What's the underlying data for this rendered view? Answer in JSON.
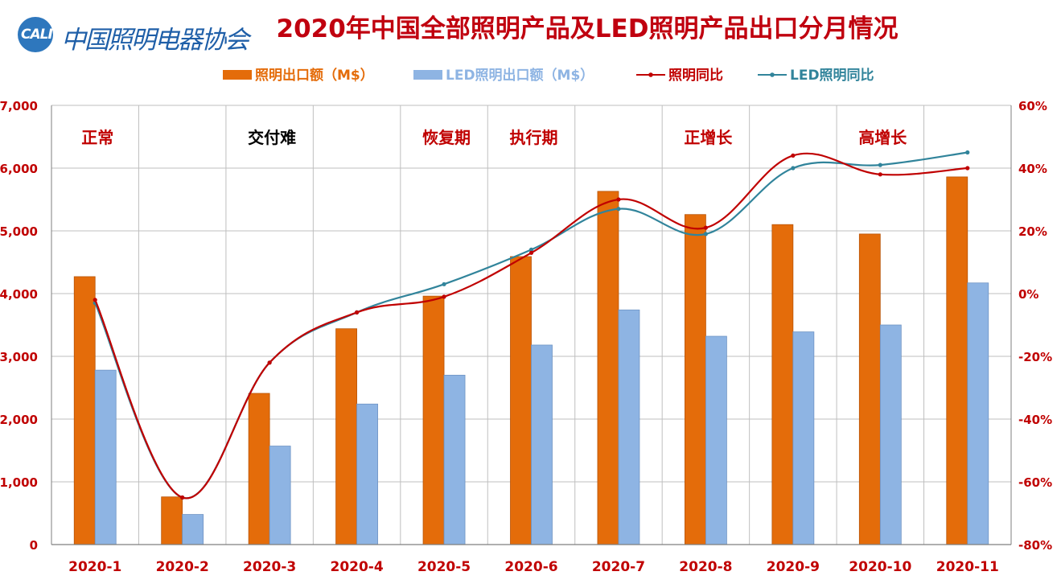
{
  "logo": {
    "abbr": "CALI",
    "text": "中国照明电器协会"
  },
  "colors": {
    "bar_total": "#e46c0a",
    "bar_led": "#8eb4e3",
    "line_total": "#c00000",
    "line_led": "#31849b",
    "title": "#c00000",
    "axis_text": "#c00000",
    "stage_red": "#c00000",
    "stage_black": "#000000"
  },
  "chart_data": {
    "type": "bar",
    "title": "2020年中国全部照明产品及LED照明产品出口分月情况",
    "categories": [
      "2020-1",
      "2020-2",
      "2020-3",
      "2020-4",
      "2020-5",
      "2020-6",
      "2020-7",
      "2020-8",
      "2020-9",
      "2020-10",
      "2020-11"
    ],
    "series": [
      {
        "name": "照明出口额（M$）",
        "kind": "bar",
        "axis": "left",
        "color_key": "bar_total",
        "values": [
          4270,
          760,
          2410,
          3440,
          3960,
          4590,
          5630,
          5260,
          5100,
          4950,
          5860
        ]
      },
      {
        "name": "LED照明出口额（M$）",
        "kind": "bar",
        "axis": "left",
        "color_key": "bar_led",
        "values": [
          2780,
          480,
          1570,
          2240,
          2700,
          3180,
          3740,
          3320,
          3390,
          3500,
          4170
        ]
      },
      {
        "name": "照明同比",
        "kind": "line",
        "axis": "right",
        "color_key": "line_total",
        "values": [
          -2,
          -65,
          -22,
          -6,
          -1,
          13,
          30,
          21,
          44,
          38,
          40
        ]
      },
      {
        "name": "LED照明同比",
        "kind": "line",
        "axis": "right",
        "color_key": "line_led",
        "values": [
          -3,
          -65,
          -22,
          -6,
          3,
          14,
          27,
          19,
          40,
          41,
          45
        ]
      }
    ],
    "y_left": {
      "min": 0,
      "max": 7000,
      "step": 1000,
      "tick_labels": [
        "0",
        "1,000",
        "2,000",
        "3,000",
        "4,000",
        "5,000",
        "6,000",
        "7,000"
      ]
    },
    "y_right": {
      "min": -80,
      "max": 60,
      "step": 20,
      "tick_labels": [
        "-80%",
        "-60%",
        "-40%",
        "-20%",
        "0%",
        "20%",
        "40%",
        "60%"
      ]
    },
    "grid": true,
    "legend_position": "top",
    "annotations": [
      {
        "text": "正常",
        "category": "2020-1",
        "color_key": "stage_red"
      },
      {
        "text": "交付难",
        "category": "2020-3",
        "color_key": "stage_black"
      },
      {
        "text": "恢复期",
        "category": "2020-5",
        "color_key": "stage_red"
      },
      {
        "text": "执行期",
        "category": "2020-6",
        "color_key": "stage_red"
      },
      {
        "text": "正增长",
        "category": "2020-8",
        "color_key": "stage_red"
      },
      {
        "text": "高增长",
        "category": "2020-10",
        "color_key": "stage_red"
      }
    ]
  }
}
